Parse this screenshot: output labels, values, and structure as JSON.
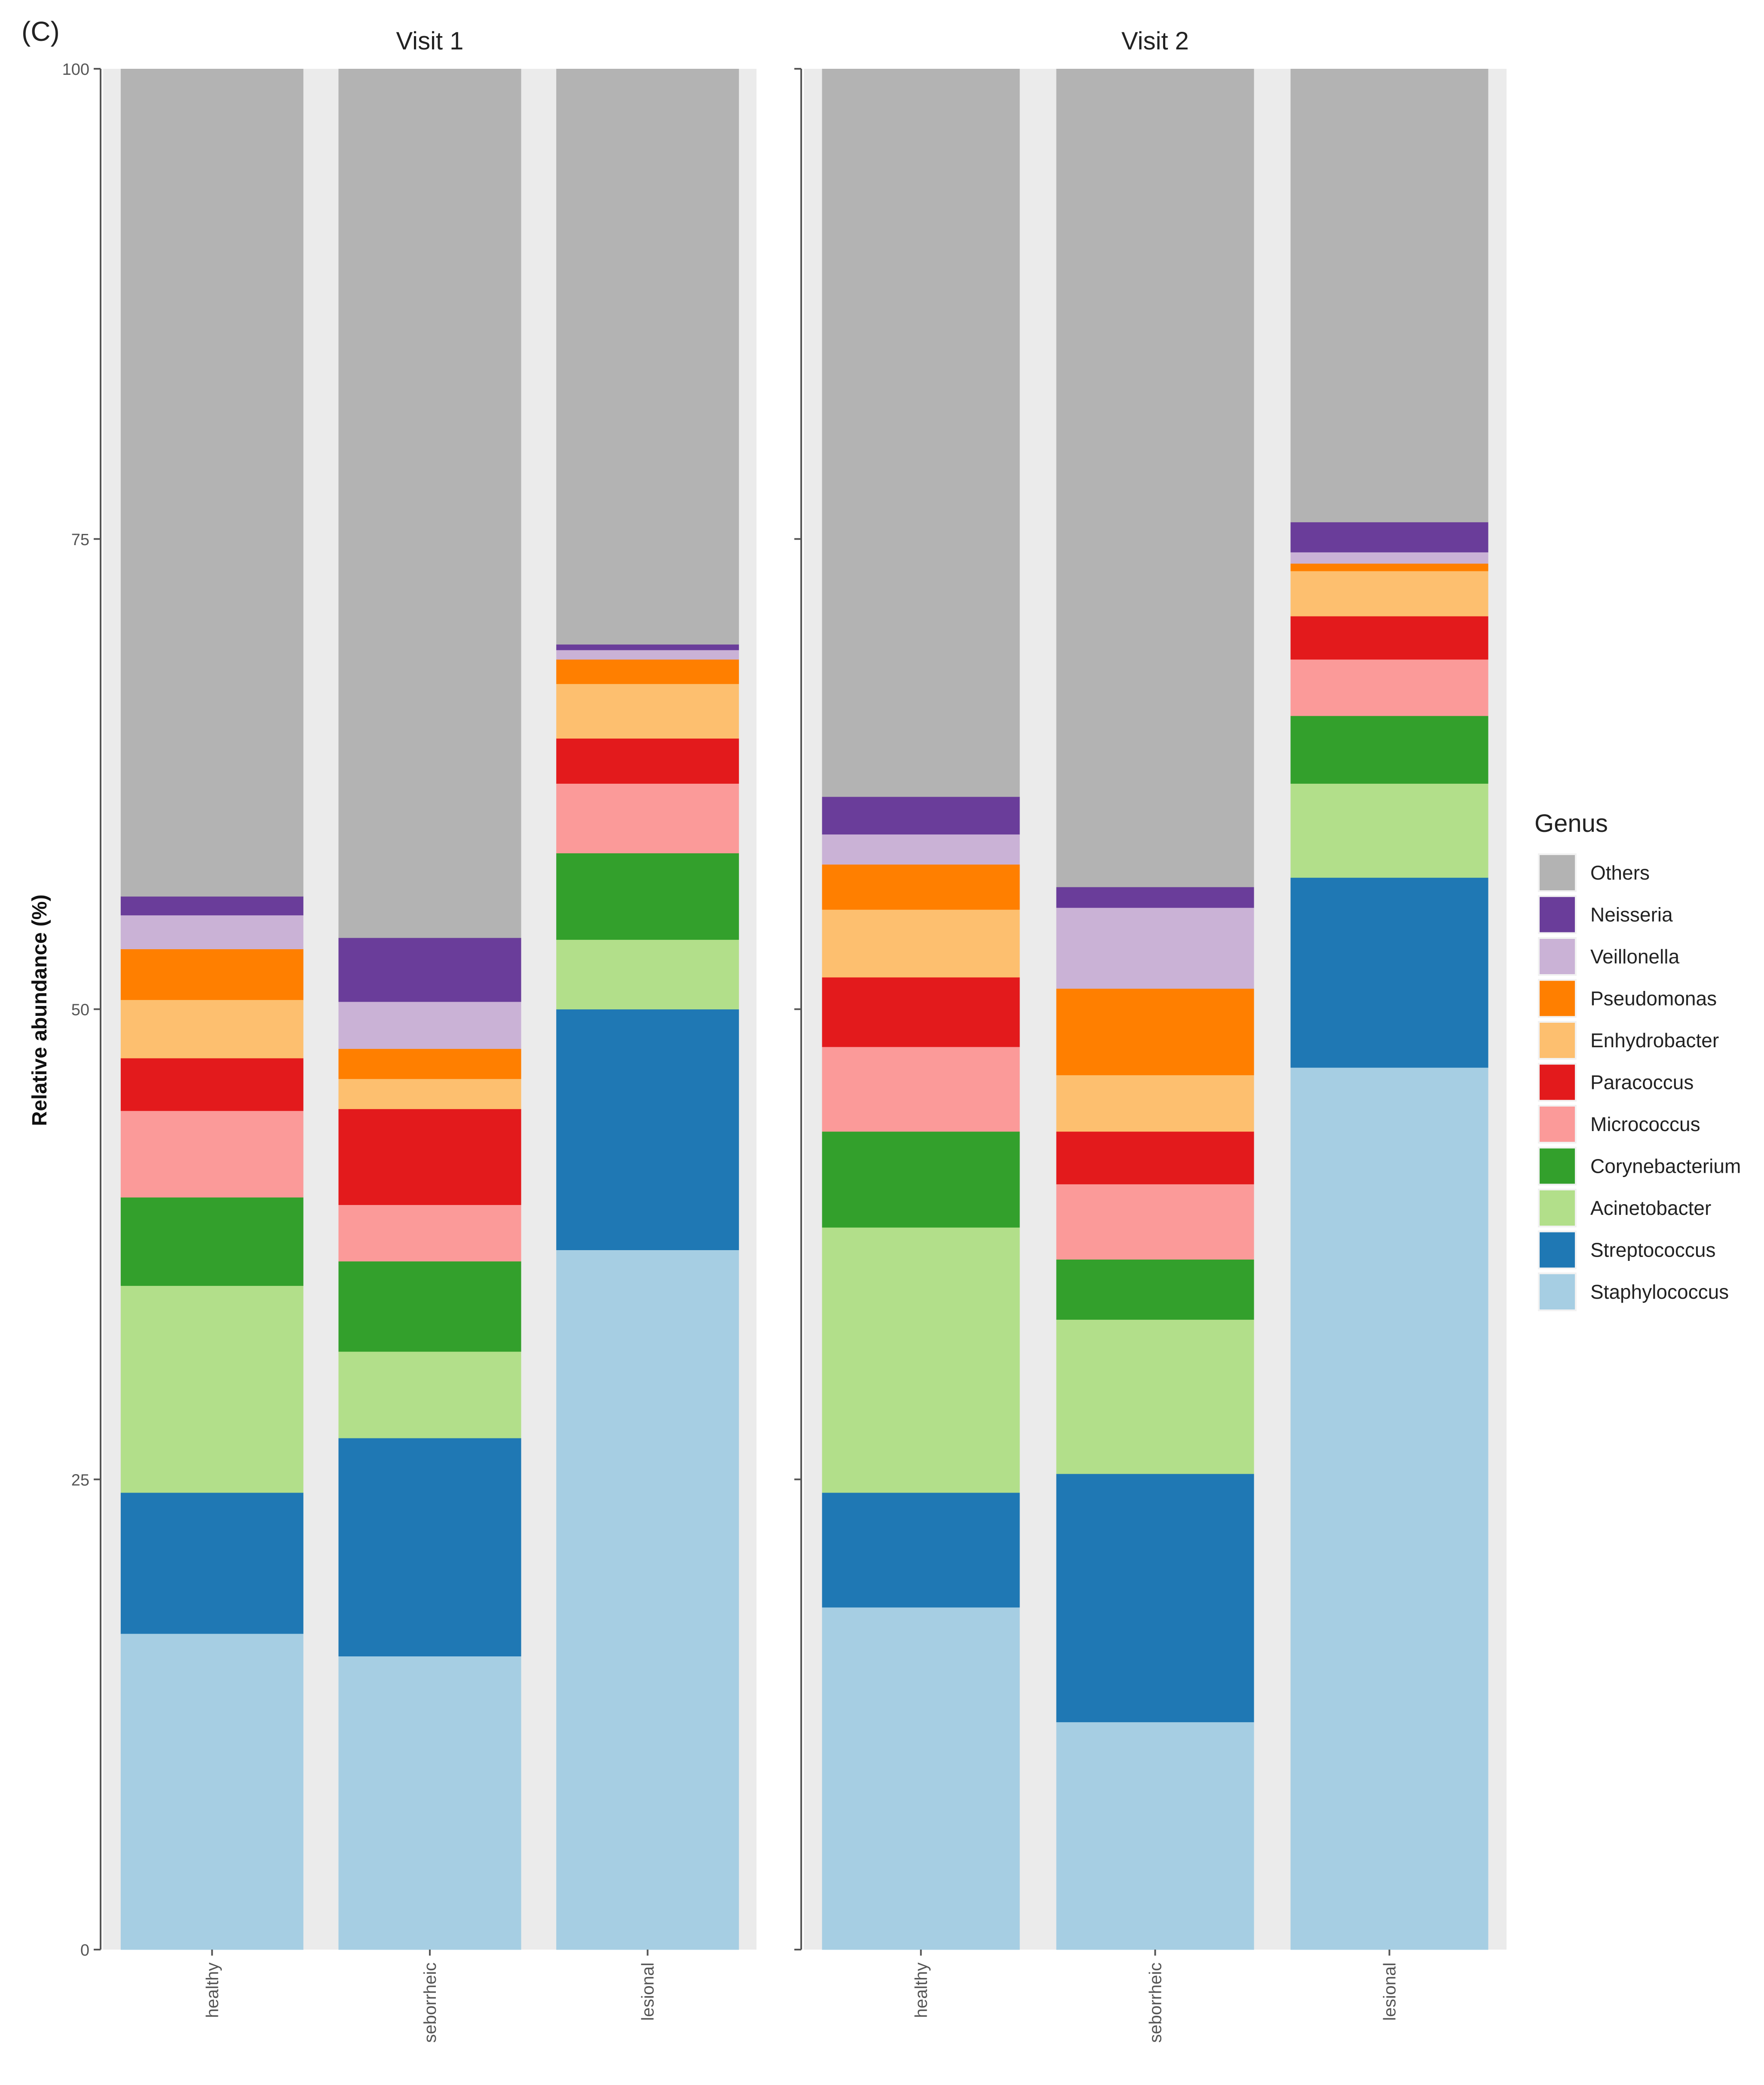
{
  "chart_data": {
    "type": "bar",
    "stacked": true,
    "panel_tag": "(C)",
    "ylabel": "Relative abundance (%)",
    "ylim": [
      0,
      100
    ],
    "yticks": [
      0,
      25,
      50,
      75,
      100
    ],
    "legend_title": "Genus",
    "legend_position": "right",
    "genera": [
      "Staphylococcus",
      "Streptococcus",
      "Acinetobacter",
      "Corynebacterium",
      "Micrococcus",
      "Paracoccus",
      "Enhydrobacter",
      "Pseudomonas",
      "Veillonella",
      "Neisseria",
      "Others"
    ],
    "legend_order": [
      "Others",
      "Neisseria",
      "Veillonella",
      "Pseudomonas",
      "Enhydrobacter",
      "Paracoccus",
      "Micrococcus",
      "Corynebacterium",
      "Acinetobacter",
      "Streptococcus",
      "Staphylococcus"
    ],
    "colors": {
      "Others": "#b3b3b3",
      "Neisseria": "#6a3d9a",
      "Veillonella": "#cab2d6",
      "Pseudomonas": "#ff7f00",
      "Enhydrobacter": "#fdbf6f",
      "Paracoccus": "#e31a1c",
      "Micrococcus": "#fb9a99",
      "Corynebacterium": "#33a02c",
      "Acinetobacter": "#b2df8a",
      "Streptococcus": "#1f78b4",
      "Staphylococcus": "#a6cee3"
    },
    "panels": [
      {
        "title": "Visit 1",
        "categories": [
          "healthy",
          "seborrheic",
          "lesional"
        ],
        "values": {
          "Staphylococcus": [
            16.8,
            15.6,
            37.2
          ],
          "Streptococcus": [
            7.5,
            11.6,
            12.8
          ],
          "Acinetobacter": [
            11.0,
            4.6,
            3.7
          ],
          "Corynebacterium": [
            4.7,
            4.8,
            4.6
          ],
          "Micrococcus": [
            4.6,
            3.0,
            3.7
          ],
          "Paracoccus": [
            2.8,
            5.1,
            2.4
          ],
          "Enhydrobacter": [
            3.1,
            1.6,
            2.9
          ],
          "Pseudomonas": [
            2.7,
            1.6,
            1.3
          ],
          "Veillonella": [
            1.8,
            2.5,
            0.5
          ],
          "Neisseria": [
            1.0,
            3.4,
            0.3
          ],
          "Others": [
            44.0,
            46.2,
            30.6
          ]
        }
      },
      {
        "title": "Visit 2",
        "categories": [
          "healthy",
          "seborrheic",
          "lesional"
        ],
        "values": {
          "Staphylococcus": [
            18.2,
            12.1,
            46.9
          ],
          "Streptococcus": [
            6.1,
            13.2,
            10.1
          ],
          "Acinetobacter": [
            14.1,
            8.2,
            5.0
          ],
          "Corynebacterium": [
            5.1,
            3.2,
            3.6
          ],
          "Micrococcus": [
            4.5,
            4.0,
            3.0
          ],
          "Paracoccus": [
            3.7,
            2.8,
            2.3
          ],
          "Enhydrobacter": [
            3.6,
            3.0,
            2.4
          ],
          "Pseudomonas": [
            2.4,
            4.6,
            0.4
          ],
          "Veillonella": [
            1.6,
            4.3,
            0.6
          ],
          "Neisseria": [
            2.0,
            1.1,
            1.6
          ],
          "Others": [
            38.7,
            43.5,
            24.1
          ]
        }
      }
    ]
  }
}
